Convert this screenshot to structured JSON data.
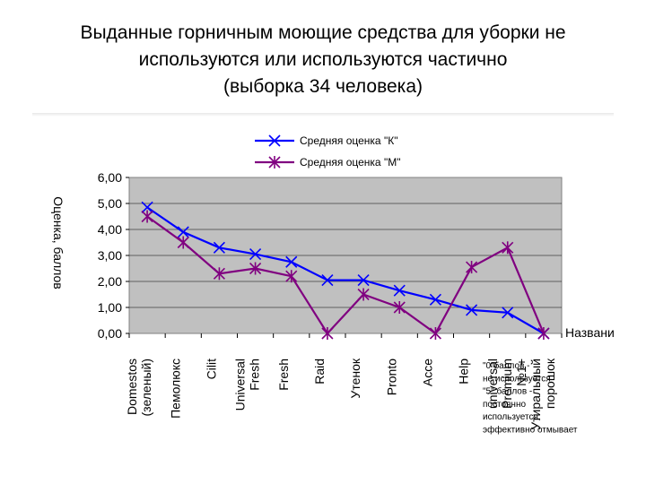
{
  "title": {
    "line1": "Выданные горничным моющие средства для уборки не",
    "line2": "используются или используются частично",
    "line3": "(выборка 34 человека)"
  },
  "chart_data": {
    "type": "line",
    "ylabel": "Оценка, баллов",
    "xlabel": "Название МС",
    "ylim": [
      0,
      6
    ],
    "yticks": [
      "0,00",
      "1,00",
      "2,00",
      "3,00",
      "4,00",
      "5,00",
      "6,00"
    ],
    "grid": true,
    "legend_position": "top",
    "categories": [
      [
        "Domestos",
        "(зеленый)"
      ],
      [
        "Пемолюкс"
      ],
      [
        "Cilit"
      ],
      [
        "Universal",
        "Fresh"
      ],
      [
        "Fresh"
      ],
      [
        "Raid"
      ],
      [
        "Утенок"
      ],
      [
        "Pronto"
      ],
      [
        "Acce"
      ],
      [
        "Help"
      ],
      [
        "universal",
        "Premium"
      ],
      [
        "№1+",
        "Утиральный",
        "порошок"
      ]
    ],
    "series": [
      {
        "name": "Средняя оценка \"К\"",
        "color": "#0000ff",
        "marker": "x",
        "values": [
          4.85,
          3.9,
          3.3,
          3.05,
          2.75,
          2.05,
          2.05,
          1.65,
          1.3,
          0.9,
          0.8,
          0.0
        ]
      },
      {
        "name": "Средняя оценка \"М\"",
        "color": "#800080",
        "marker": "asterisk",
        "values": [
          4.5,
          3.5,
          2.3,
          2.5,
          2.2,
          0.0,
          1.5,
          1.0,
          0.0,
          2.55,
          3.3,
          0.0
        ]
      }
    ],
    "annotation": [
      "\"0\"баллов -",
      "не используется",
      "\"5\" баллов -",
      "постоянно",
      "используется,",
      "эффективно отмывает"
    ]
  }
}
